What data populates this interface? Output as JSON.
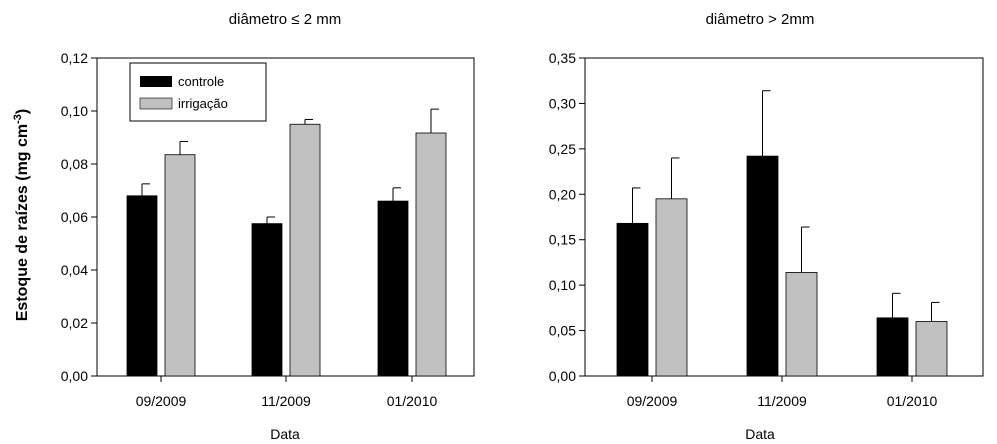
{
  "ylabel": "Estoque de raízes (mg cm",
  "ylabel_sup": "-3",
  "ylabel_end": ")",
  "colors": {
    "controle": "#000000",
    "irrigacao": "#c0c0c0"
  },
  "legend": {
    "controle": "controle",
    "irrigacao": "irrigação"
  },
  "chart_data": [
    {
      "type": "bar",
      "title": "diâmetro ≤ 2 mm",
      "xlabel": "Data",
      "categories": [
        "09/2009",
        "11/2009",
        "01/2010"
      ],
      "series": [
        {
          "name": "controle",
          "values": [
            0.068,
            0.0575,
            0.066
          ],
          "errors": [
            0.0045,
            0.0025,
            0.005
          ]
        },
        {
          "name": "irrigação",
          "values": [
            0.0835,
            0.095,
            0.0917
          ],
          "errors": [
            0.005,
            0.0018,
            0.009
          ]
        }
      ],
      "ylim": [
        0,
        0.12
      ],
      "yticks": [
        0,
        0.02,
        0.04,
        0.06,
        0.08,
        0.1,
        0.12
      ],
      "ytick_labels": [
        "0,00",
        "0,02",
        "0,04",
        "0,06",
        "0,08",
        "0,10",
        "0,12"
      ],
      "legend_position": "top-left",
      "grid": false
    },
    {
      "type": "bar",
      "title": "diâmetro > 2mm",
      "xlabel": "Data",
      "categories": [
        "09/2009",
        "11/2009",
        "01/2010"
      ],
      "series": [
        {
          "name": "controle",
          "values": [
            0.168,
            0.242,
            0.064
          ],
          "errors": [
            0.039,
            0.072,
            0.027
          ]
        },
        {
          "name": "irrigação",
          "values": [
            0.195,
            0.114,
            0.06
          ],
          "errors": [
            0.045,
            0.05,
            0.021
          ]
        }
      ],
      "ylim": [
        0,
        0.35
      ],
      "yticks": [
        0,
        0.05,
        0.1,
        0.15,
        0.2,
        0.25,
        0.3,
        0.35
      ],
      "ytick_labels": [
        "0,00",
        "0,05",
        "0,10",
        "0,15",
        "0,20",
        "0,25",
        "0,30",
        "0,35"
      ],
      "grid": false
    }
  ]
}
